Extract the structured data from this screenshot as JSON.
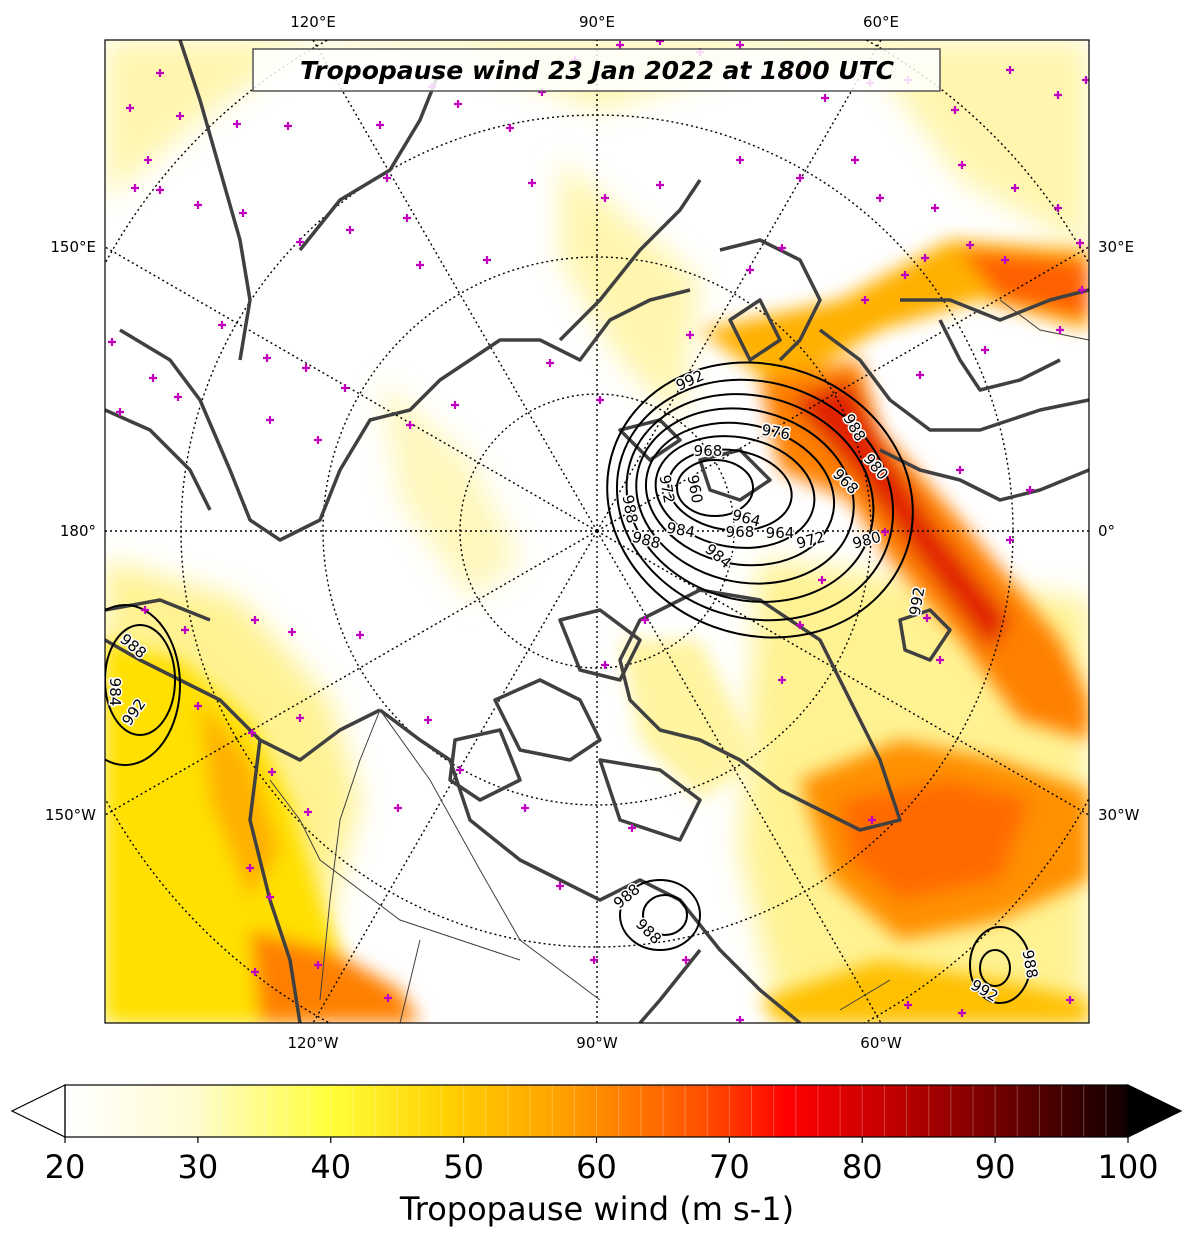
{
  "map": {
    "title": "Tropopause wind 23 Jan 2022 at 1800 UTC",
    "projection": "north-polar-stereographic",
    "longitude_labels_top": [
      "120°E",
      "90°E",
      "60°E"
    ],
    "longitude_labels_bottom": [
      "120°W",
      "90°W",
      "60°W"
    ],
    "longitude_labels_left": [
      "150°E",
      "180°",
      "150°W"
    ],
    "longitude_labels_right": [
      "30°E",
      "0°",
      "30°W"
    ],
    "pressure_contour_labels": {
      "main_low": [
        "992",
        "976",
        "968",
        "960",
        "972",
        "988",
        "964",
        "964",
        "968",
        "972",
        "980",
        "984",
        "988",
        "968",
        "980",
        "988",
        "984",
        "992",
        "976"
      ],
      "left_low": [
        "988",
        "984",
        "992"
      ],
      "hudson_low": [
        "988",
        "988"
      ],
      "atlantic_low": [
        "988",
        "992"
      ]
    },
    "wind_colors": [
      "#ffffff",
      "#fff6c0",
      "#ffff3a",
      "#ffd000",
      "#ffa000",
      "#ff6a00",
      "#ff2000",
      "#e00000",
      "#b00000",
      "#700000",
      "#200000"
    ],
    "station_marker_color": "#c000c0"
  },
  "colorbar": {
    "label": "Tropopause wind (m s-1)",
    "min": 20,
    "max": 100,
    "ticks": [
      "20",
      "30",
      "40",
      "50",
      "60",
      "70",
      "80",
      "90",
      "100"
    ],
    "extend": "both"
  }
}
